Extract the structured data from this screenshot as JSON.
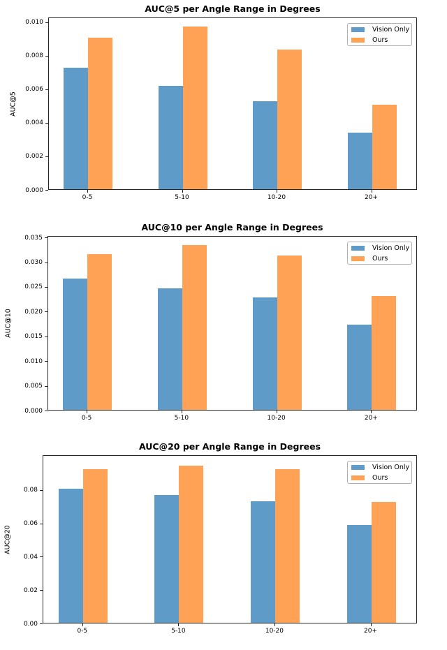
{
  "figure": {
    "background": "#ffffff"
  },
  "colors": {
    "vision_only": "#5E9BC8",
    "ours": "#FFA256",
    "spine": "#262626",
    "legend_border": "#b0b0b0",
    "text": "#000000"
  },
  "legend": {
    "labels": [
      "Vision Only",
      "Ours"
    ],
    "position": "upper right"
  },
  "chart_data": [
    {
      "type": "bar",
      "title": "AUC@5 per Angle Range in Degrees",
      "ylabel": "AUC@5",
      "xlabel": "",
      "categories": [
        "0-5",
        "5-10",
        "10-20",
        "20+"
      ],
      "series": [
        {
          "name": "Vision Only",
          "values": [
            0.0073,
            0.0062,
            0.0053,
            0.0034
          ]
        },
        {
          "name": "Ours",
          "values": [
            0.0091,
            0.0098,
            0.0084,
            0.0051
          ]
        }
      ],
      "ylim": [
        0,
        0.01029
      ],
      "yticks": [
        "0.000",
        "0.002",
        "0.004",
        "0.006",
        "0.008",
        "0.010"
      ],
      "grid": false,
      "legend_position": "upper right"
    },
    {
      "type": "bar",
      "title": "AUC@10 per Angle Range in Degrees",
      "ylabel": "AUC@10",
      "xlabel": "",
      "categories": [
        "0-5",
        "5-10",
        "10-20",
        "20+"
      ],
      "series": [
        {
          "name": "Vision Only",
          "values": [
            0.0267,
            0.0247,
            0.0229,
            0.0173
          ]
        },
        {
          "name": "Ours",
          "values": [
            0.0317,
            0.0336,
            0.0315,
            0.0232
          ]
        }
      ],
      "ylim": [
        0,
        0.0353
      ],
      "yticks": [
        "0.000",
        "0.005",
        "0.010",
        "0.015",
        "0.020",
        "0.025",
        "0.030",
        "0.035"
      ],
      "grid": false,
      "legend_position": "upper right"
    },
    {
      "type": "bar",
      "title": "AUC@20 per Angle Range in Degrees",
      "ylabel": "AUC@20",
      "xlabel": "",
      "categories": [
        "0-5",
        "5-10",
        "10-20",
        "20+"
      ],
      "series": [
        {
          "name": "Vision Only",
          "values": [
            0.081,
            0.077,
            0.0735,
            0.059
          ]
        },
        {
          "name": "Ours",
          "values": [
            0.093,
            0.095,
            0.093,
            0.073
          ]
        }
      ],
      "ylim": [
        0,
        0.1008
      ],
      "yticks": [
        "0.00",
        "0.02",
        "0.04",
        "0.06",
        "0.08"
      ],
      "grid": false,
      "legend_position": "upper right"
    }
  ]
}
